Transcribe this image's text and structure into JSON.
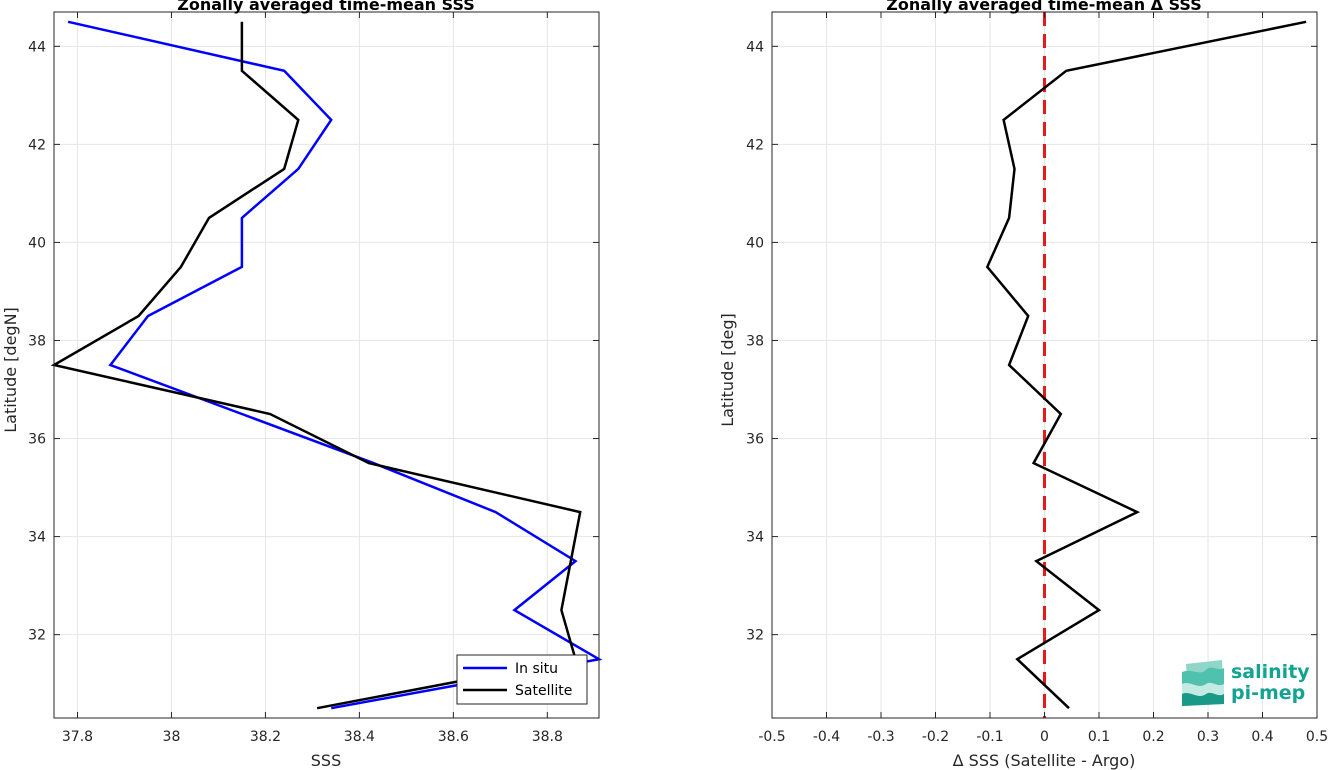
{
  "chart_data": [
    {
      "type": "line",
      "title": "Zonally averaged time-mean SSS",
      "xlabel": "SSS",
      "ylabel": "Latitude [degN]",
      "xlim": [
        37.75,
        38.91
      ],
      "ylim": [
        30.3,
        44.7
      ],
      "x_ticks": [
        37.8,
        38.0,
        38.2,
        38.4,
        38.6,
        38.8
      ],
      "x_tick_labels": [
        "37.8",
        "38",
        "38.2",
        "38.4",
        "38.6",
        "38.8"
      ],
      "y_ticks": [
        32,
        34,
        36,
        38,
        40,
        42,
        44
      ],
      "y_tick_labels": [
        "32",
        "34",
        "36",
        "38",
        "40",
        "42",
        "44"
      ],
      "grid": true,
      "legend_position": "bottom-right",
      "latitudes": [
        44.5,
        43.5,
        42.5,
        41.5,
        40.5,
        39.5,
        38.5,
        37.5,
        36.5,
        35.5,
        34.5,
        33.5,
        32.5,
        31.5,
        30.5
      ],
      "series": [
        {
          "name": "In situ",
          "color": "#0000ff",
          "values": [
            37.78,
            38.24,
            38.34,
            38.27,
            38.15,
            38.15,
            37.95,
            37.87,
            38.15,
            38.43,
            38.69,
            38.86,
            38.73,
            38.91,
            38.34
          ]
        },
        {
          "name": "Satellite",
          "color": "#000000",
          "values": [
            38.15,
            38.15,
            38.27,
            38.24,
            38.08,
            38.02,
            37.93,
            37.75,
            38.21,
            38.42,
            38.87,
            38.85,
            38.83,
            38.86,
            38.31
          ]
        }
      ]
    },
    {
      "type": "line",
      "title": "Zonally averaged time-mean Δ SSS",
      "xlabel": "Δ SSS (Satellite - Argo)",
      "ylabel": "Latitude [deg]",
      "xlim": [
        -0.5,
        0.5
      ],
      "ylim": [
        30.3,
        44.7
      ],
      "x_ticks": [
        -0.5,
        -0.4,
        -0.3,
        -0.2,
        -0.1,
        0,
        0.1,
        0.2,
        0.3,
        0.4,
        0.5
      ],
      "x_tick_labels": [
        "-0.5",
        "-0.4",
        "-0.3",
        "-0.2",
        "-0.1",
        "0",
        "0.1",
        "0.2",
        "0.3",
        "0.4",
        "0.5"
      ],
      "y_ticks": [
        32,
        34,
        36,
        38,
        40,
        42,
        44
      ],
      "y_tick_labels": [
        "32",
        "34",
        "36",
        "38",
        "40",
        "42",
        "44"
      ],
      "grid": true,
      "reference_line": {
        "x": 0,
        "color": "#e41a1c",
        "style": "dashed"
      },
      "series": [
        {
          "color": "#000000",
          "latitudes": [
            44.5,
            43.5,
            42.5,
            41.5,
            40.5,
            39.5,
            38.5,
            37.5,
            36.5,
            35.5,
            34.5,
            33.5,
            32.5,
            31.5,
            30.5
          ],
          "values": [
            0.48,
            0.04,
            -0.075,
            -0.055,
            -0.065,
            -0.105,
            -0.03,
            -0.065,
            0.03,
            -0.02,
            0.17,
            -0.015,
            0.1,
            -0.05,
            0.045
          ]
        }
      ]
    }
  ],
  "logo": {
    "line1": "salinity",
    "line2": "pi-mep",
    "color": "#14a391"
  }
}
